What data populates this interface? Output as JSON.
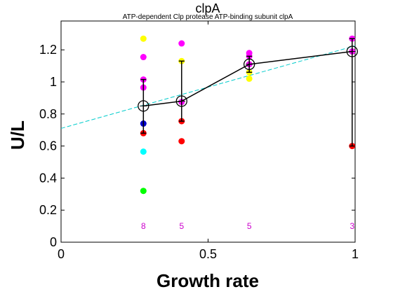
{
  "chart_data": {
    "type": "scatter",
    "title": "clpA",
    "subtitle": "ATP-dependent Clp protease ATP-binding subunit clpA",
    "xlabel": "Growth rate",
    "ylabel": "U/L",
    "xlim": [
      0,
      1.0
    ],
    "ylim": [
      0,
      1.38
    ],
    "xticks": [
      0,
      0.5,
      1
    ],
    "xtick_labels": [
      "0",
      "0.5",
      "1"
    ],
    "yticks": [
      0,
      0.2,
      0.4,
      0.6,
      0.8,
      1.0,
      1.2
    ],
    "ytick_labels": [
      "0",
      "0.2",
      "0.4",
      "0.6",
      "0.8",
      "1",
      "1.2"
    ],
    "grid": false,
    "points": [
      {
        "x": 0.28,
        "y": 1.27,
        "color": "#ffff00"
      },
      {
        "x": 0.28,
        "y": 1.155,
        "color": "#ff00ff"
      },
      {
        "x": 0.28,
        "y": 1.015,
        "color": "#ff00ff"
      },
      {
        "x": 0.28,
        "y": 0.965,
        "color": "#ff00ff"
      },
      {
        "x": 0.28,
        "y": 0.74,
        "color": "#0000cc"
      },
      {
        "x": 0.28,
        "y": 0.68,
        "color": "#ff0000"
      },
      {
        "x": 0.28,
        "y": 0.565,
        "color": "#00ffff"
      },
      {
        "x": 0.28,
        "y": 0.32,
        "color": "#00ff00"
      },
      {
        "x": 0.41,
        "y": 1.24,
        "color": "#ff00ff"
      },
      {
        "x": 0.41,
        "y": 1.13,
        "color": "#ffff00"
      },
      {
        "x": 0.41,
        "y": 0.875,
        "color": "#ff00ff"
      },
      {
        "x": 0.41,
        "y": 0.755,
        "color": "#ff0000"
      },
      {
        "x": 0.41,
        "y": 0.63,
        "color": "#ff0000"
      },
      {
        "x": 0.64,
        "y": 1.18,
        "color": "#ff00ff"
      },
      {
        "x": 0.64,
        "y": 1.16,
        "color": "#ff00ff"
      },
      {
        "x": 0.64,
        "y": 1.11,
        "color": "#ff00ff"
      },
      {
        "x": 0.64,
        "y": 1.06,
        "color": "#ffff00"
      },
      {
        "x": 0.64,
        "y": 1.02,
        "color": "#ffff00"
      },
      {
        "x": 0.99,
        "y": 1.27,
        "color": "#ff00ff"
      },
      {
        "x": 0.99,
        "y": 1.19,
        "color": "#ff00ff"
      },
      {
        "x": 0.99,
        "y": 0.6,
        "color": "#ff0000"
      }
    ],
    "mean_series": {
      "x": [
        0.28,
        0.41,
        0.64,
        0.99
      ],
      "y": [
        0.85,
        0.88,
        1.11,
        1.19
      ],
      "err_low": [
        0.68,
        0.755,
        1.06,
        0.6
      ],
      "err_high": [
        1.015,
        1.13,
        1.16,
        1.27
      ],
      "color": "#000000"
    },
    "fit_line": {
      "x": [
        0,
        1.0
      ],
      "y": [
        0.71,
        1.225
      ],
      "color": "#00cccc",
      "style": "dashed"
    },
    "counts": [
      {
        "x": 0.28,
        "label": "8"
      },
      {
        "x": 0.41,
        "label": "5"
      },
      {
        "x": 0.64,
        "label": "5"
      },
      {
        "x": 0.99,
        "label": "3"
      }
    ],
    "count_y": 0.1,
    "count_color": "#cc00cc"
  }
}
